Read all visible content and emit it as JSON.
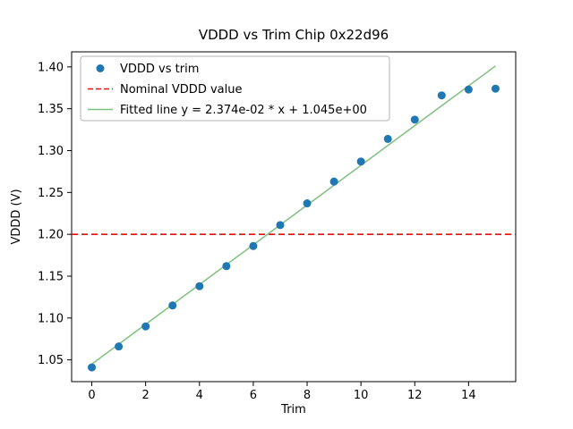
{
  "chart_data": {
    "type": "scatter",
    "title": "VDDD vs Trim Chip 0x22d96",
    "xlabel": "Trim",
    "ylabel": "VDDD (V)",
    "xlim": [
      -0.75,
      15.75
    ],
    "ylim": [
      1.024,
      1.418
    ],
    "xticks": [
      0,
      2,
      4,
      6,
      8,
      10,
      12,
      14
    ],
    "yticks": [
      1.05,
      1.1,
      1.15,
      1.2,
      1.25,
      1.3,
      1.35,
      1.4
    ],
    "grid": false,
    "legend_position": "upper left",
    "series": [
      {
        "name": "VDDD vs trim",
        "kind": "scatter",
        "color": "#1f77b4",
        "x": [
          0,
          1,
          2,
          3,
          4,
          5,
          6,
          7,
          8,
          9,
          10,
          11,
          12,
          13,
          14,
          15
        ],
        "y": [
          1.041,
          1.066,
          1.09,
          1.115,
          1.138,
          1.162,
          1.186,
          1.211,
          1.237,
          1.263,
          1.287,
          1.314,
          1.337,
          1.366,
          1.373,
          1.374
        ]
      },
      {
        "name": "Nominal VDDD value",
        "kind": "hline",
        "color": "#e01010",
        "dashed": true,
        "y": 1.2
      },
      {
        "name": "Fitted line y = 2.374e-02 * x + 1.045e+00",
        "kind": "line",
        "color": "#7fbf7f",
        "slope": 0.02374,
        "intercept": 1.045,
        "x_range": [
          0,
          15
        ]
      }
    ]
  }
}
